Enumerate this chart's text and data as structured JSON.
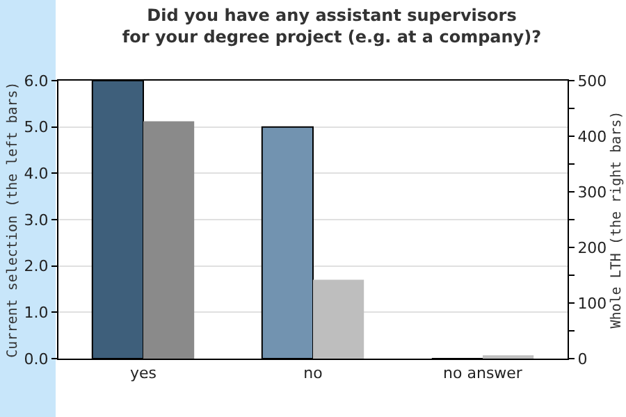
{
  "chart_data": {
    "type": "bar",
    "title": "Did you have any assistant supervisors\nfor your degree project (e.g. at a company)?",
    "ylabel": "Current selection (the left bars)",
    "y2label": "Whole LTH (the right bars)",
    "categories": [
      "yes",
      "no",
      "no answer"
    ],
    "series": [
      {
        "colors": [
          "#3e5f7b",
          "#7293b0",
          "#7293b0"
        ],
        "values": [
          6,
          5,
          0
        ]
      },
      {
        "axis": "y2",
        "colors": [
          "#8a8a8a",
          "#bebebe",
          "#bebebe"
        ],
        "values": [
          427,
          142,
          6
        ]
      }
    ],
    "ylim": [
      0,
      6
    ],
    "yticks": [
      {
        "value": 0,
        "label": "0.0"
      },
      {
        "value": 1,
        "label": "1.0"
      },
      {
        "value": 2,
        "label": "2.0"
      },
      {
        "value": 3,
        "label": "3.0"
      },
      {
        "value": 4,
        "label": "4.0"
      },
      {
        "value": 5,
        "label": "5.0"
      },
      {
        "value": 6,
        "label": "6.0"
      }
    ],
    "y2lim": [
      0,
      500
    ],
    "y2ticks": [
      0,
      {
        "value": 50,
        "label": null
      },
      100,
      {
        "value": 150,
        "label": null
      },
      200,
      {
        "value": 250,
        "label": null
      },
      300,
      {
        "value": 350,
        "label": null
      },
      400,
      {
        "value": 450,
        "label": null
      },
      500
    ],
    "grid": "y"
  }
}
